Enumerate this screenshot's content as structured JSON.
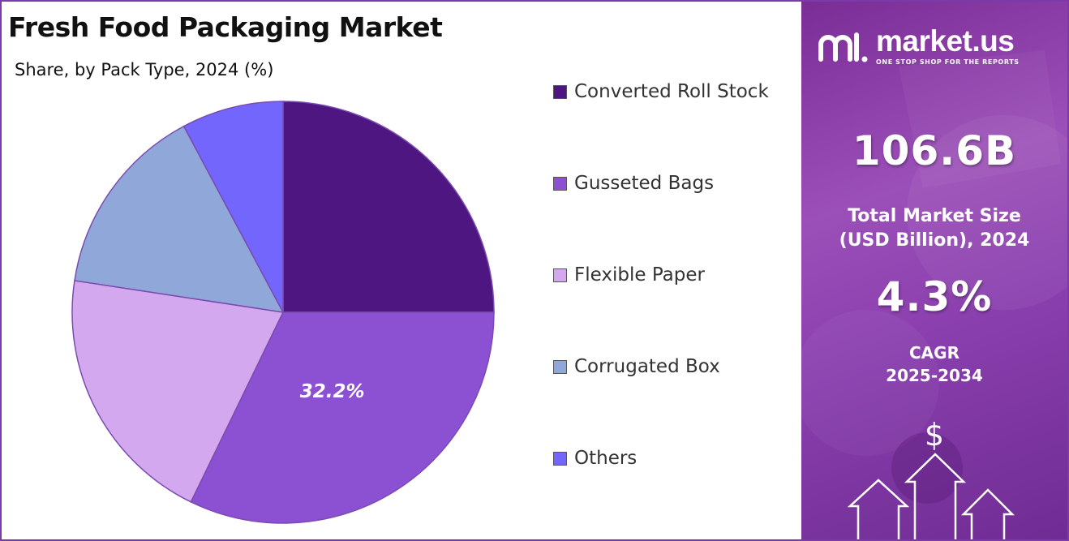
{
  "chart_data": {
    "type": "pie",
    "title": "Fresh Food Packaging Market",
    "subtitle": "Share, by Pack Type, 2024 (%)",
    "slices": [
      {
        "label": "Converted Roll Stock",
        "value": 25.0,
        "color": "#4e1680"
      },
      {
        "label": "Gusseted Bags",
        "value": 32.2,
        "color": "#8c50d2",
        "data_label": "32.2%"
      },
      {
        "label": "Flexible Paper",
        "value": 20.2,
        "color": "#d4a8ee"
      },
      {
        "label": "Corrugated Box",
        "value": 14.8,
        "color": "#8fa8d9"
      },
      {
        "label": "Others",
        "value": 7.8,
        "color": "#7366fc"
      }
    ],
    "legend_position": "right"
  },
  "brand": {
    "name": "market.us",
    "tagline": "ONE STOP SHOP FOR THE REPORTS",
    "logo_icon": "market-us-logo-icon"
  },
  "stats": {
    "market_size_value": "106.6B",
    "market_size_label_line1": "Total Market Size",
    "market_size_label_line2": "(USD Billion), 2024",
    "cagr_value": "4.3%",
    "cagr_label_line1": "CAGR",
    "cagr_label_line2": "2025-2034"
  },
  "decor": {
    "currency_symbol": "$",
    "growth_icon": "growth-arrows-icon"
  }
}
